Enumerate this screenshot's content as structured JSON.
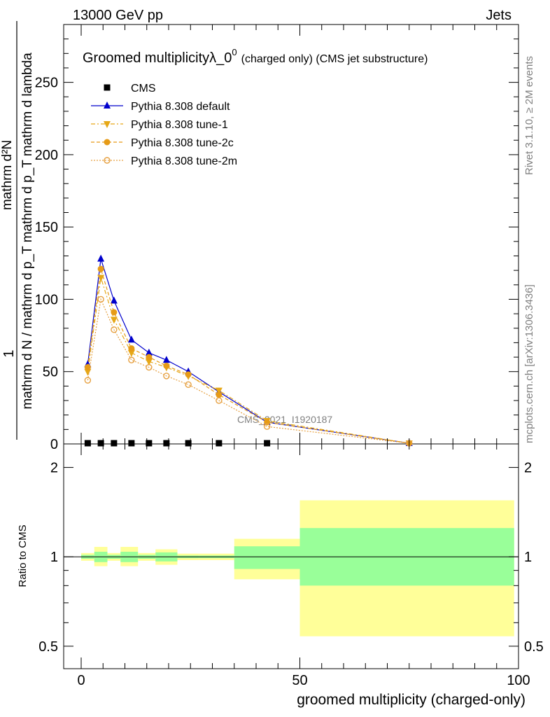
{
  "header": {
    "left": "13000 GeV pp",
    "right": "Jets"
  },
  "side_labels": {
    "rivet": "Rivet 3.1.10, ≥ 2M events",
    "mcplots": "mcplots.cern.ch [arXiv:1306.3436]"
  },
  "chart_data": [
    {
      "type": "line",
      "title_main": "Groomed multiplicityλ_0",
      "title_sup": "0",
      "title_sub": "(charged only) (CMS jet substructure)",
      "ylabel_num": "1",
      "ylabel_top": "mathrm d²N",
      "ylabel_bottom": "mathrm d N / mathrm d p_T mathrm d p_T mathrm d lambda",
      "watermark": "CMS_2021_I1920187",
      "xlim": [
        -4,
        100
      ],
      "ylim": [
        0,
        290
      ],
      "yticks": [
        0,
        50,
        100,
        150,
        200,
        250
      ],
      "legend_position": "top-left",
      "series": [
        {
          "name": "CMS",
          "color": "#000000",
          "marker": "square",
          "x": [
            1.5,
            4.5,
            7.5,
            11.5,
            15.5,
            19.5,
            24.5,
            31.5,
            42.5
          ],
          "y": [
            0.5,
            0.5,
            0.5,
            0.5,
            0.5,
            0.5,
            0.5,
            0.5,
            0.5
          ]
        },
        {
          "name": "Pythia 8.308 default",
          "color": "#0000cc",
          "marker": "triangle-up",
          "dash": "",
          "x": [
            1.5,
            4.5,
            7.5,
            11.5,
            15.5,
            19.5,
            24.5,
            31.5,
            42.5,
            75
          ],
          "y": [
            55,
            128,
            99,
            72,
            63,
            58,
            50,
            36,
            15,
            0.5
          ]
        },
        {
          "name": "Pythia 8.308 tune-1",
          "color": "#e6a817",
          "marker": "triangle-down",
          "dash": "6,3,2,3",
          "x": [
            1.5,
            4.5,
            7.5,
            11.5,
            15.5,
            19.5,
            24.5,
            31.5,
            42.5,
            75
          ],
          "y": [
            50,
            115,
            86,
            63,
            57,
            53,
            47,
            37,
            16,
            0.5
          ]
        },
        {
          "name": "Pythia 8.308 tune-2c",
          "color": "#e69b17",
          "marker": "circle",
          "dash": "5,3",
          "x": [
            1.5,
            4.5,
            7.5,
            11.5,
            15.5,
            19.5,
            24.5,
            31.5,
            42.5,
            75
          ],
          "y": [
            53,
            121,
            91,
            66,
            60,
            54,
            48,
            34,
            15,
            0.5
          ]
        },
        {
          "name": "Pythia 8.308 tune-2m",
          "color": "#e6a040",
          "marker": "open-circle",
          "dash": "2,2",
          "x": [
            1.5,
            4.5,
            7.5,
            11.5,
            15.5,
            19.5,
            24.5,
            31.5,
            42.5,
            75
          ],
          "y": [
            44,
            100,
            79,
            58,
            53,
            47,
            41,
            30,
            12,
            0.5
          ]
        }
      ]
    },
    {
      "type": "area",
      "ylabel": "Ratio to CMS",
      "xlabel": "groomed multiplicity (charged-only)",
      "xlim": [
        -4,
        100
      ],
      "ylim": [
        0.42,
        2.4
      ],
      "yticks": [
        0.5,
        1,
        2
      ],
      "xticks": [
        0,
        50,
        100
      ],
      "reference_line": 1,
      "bands": [
        {
          "x0": 0,
          "x1": 3,
          "stat": [
            0.985,
            1.015
          ],
          "total": [
            0.97,
            1.03
          ]
        },
        {
          "x0": 3,
          "x1": 6,
          "stat": [
            0.96,
            1.04
          ],
          "total": [
            0.93,
            1.08
          ]
        },
        {
          "x0": 6,
          "x1": 9,
          "stat": [
            0.985,
            1.015
          ],
          "total": [
            0.97,
            1.03
          ]
        },
        {
          "x0": 9,
          "x1": 13,
          "stat": [
            0.96,
            1.04
          ],
          "total": [
            0.93,
            1.08
          ]
        },
        {
          "x0": 13,
          "x1": 17,
          "stat": [
            0.985,
            1.015
          ],
          "total": [
            0.97,
            1.03
          ]
        },
        {
          "x0": 17,
          "x1": 22,
          "stat": [
            0.965,
            1.035
          ],
          "total": [
            0.94,
            1.06
          ]
        },
        {
          "x0": 22,
          "x1": 27,
          "stat": [
            0.99,
            1.01
          ],
          "total": [
            0.975,
            1.025
          ]
        },
        {
          "x0": 27,
          "x1": 35,
          "stat": [
            0.99,
            1.01
          ],
          "total": [
            0.975,
            1.025
          ]
        },
        {
          "x0": 35,
          "x1": 50,
          "stat": [
            0.91,
            1.085
          ],
          "total": [
            0.84,
            1.15
          ]
        },
        {
          "x0": 50,
          "x1": 99,
          "stat": [
            0.8,
            1.25
          ],
          "total": [
            0.54,
            1.55
          ]
        }
      ]
    }
  ],
  "colors": {
    "stat_band": "#99ff99",
    "total_band": "#ffff99"
  }
}
